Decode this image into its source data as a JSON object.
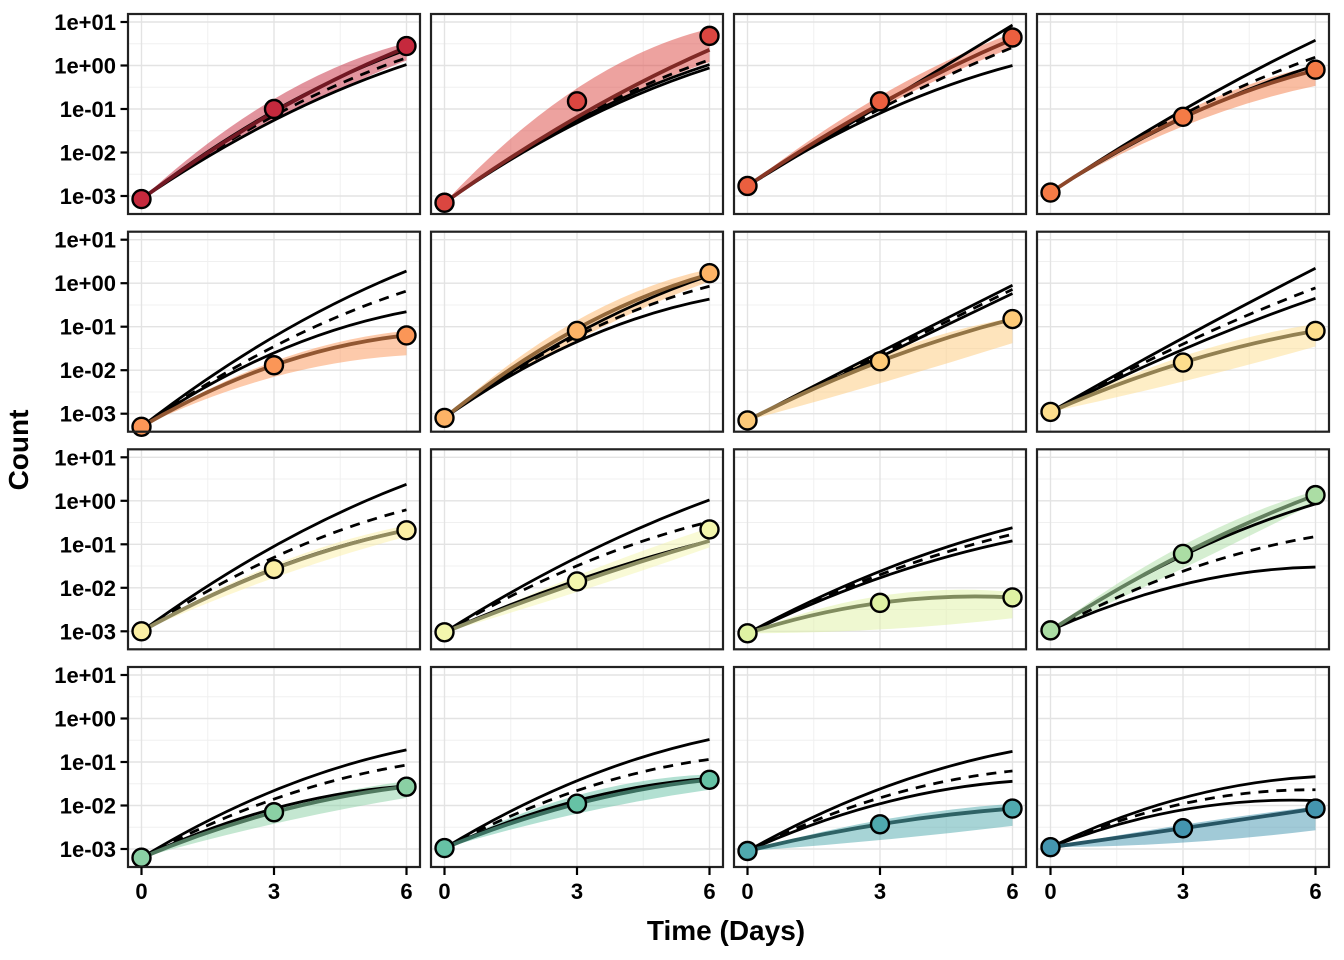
{
  "chart_data": {
    "type": "line",
    "title": "",
    "xlabel": "Time (Days)",
    "ylabel": "Count",
    "x": [
      0,
      3,
      6
    ],
    "x_ticks": [
      "0",
      "3",
      "6"
    ],
    "y_ticks": [
      "1e+01",
      "1e+00",
      "1e-01",
      "1e-02",
      "1e-03"
    ],
    "y_tick_values": [
      10,
      1,
      0.1,
      0.01,
      0.001
    ],
    "x_range": [
      0,
      6
    ],
    "y_log_range": [
      -3.45,
      1.18
    ],
    "grid": {
      "rows": 4,
      "cols": 4,
      "major_on": true,
      "minor_on": true
    },
    "legend": "none",
    "styles": {
      "ref_line_color": "#000000",
      "panel_border_color": "#222222",
      "grid_major_color": "#e3e3e3",
      "grid_minor_color": "#f0f0f0",
      "point_outline_color": "#000000",
      "ribbon_opacity": 0.5
    },
    "facets": [
      {
        "row": 1,
        "col": 1,
        "fill": "#C5293D",
        "stroke": "#721823",
        "points": [
          0.00085,
          0.1,
          2.8
        ],
        "line": [
          0.00085,
          0.085,
          2.6
        ],
        "ribbon_upper": [
          0.00085,
          0.17,
          3.3
        ],
        "ribbon_lower": [
          0.00085,
          0.052,
          1.3
        ],
        "ref_upper": [
          0.00085,
          0.09,
          2.3
        ],
        "ref_dashed": [
          0.00085,
          0.07,
          1.5
        ],
        "ref_lower": [
          0.00085,
          0.055,
          1.05
        ]
      },
      {
        "row": 1,
        "col": 2,
        "fill": "#DB4640",
        "stroke": "#7F2925",
        "points": [
          0.0007,
          0.15,
          4.8
        ],
        "line": [
          0.0007,
          0.065,
          2.3
        ],
        "ribbon_upper": [
          0.0007,
          0.3,
          7.0
        ],
        "ribbon_lower": [
          0.0007,
          0.055,
          1.2
        ],
        "ref_upper": [
          0.0007,
          0.055,
          1.05
        ],
        "ref_dashed": [
          0.0007,
          0.06,
          1.35
        ],
        "ref_lower": [
          0.0007,
          0.048,
          0.88
        ]
      },
      {
        "row": 1,
        "col": 3,
        "fill": "#EB5F3F",
        "stroke": "#883725",
        "points": [
          0.0017,
          0.15,
          4.4
        ],
        "line": [
          0.0017,
          0.13,
          4.0
        ],
        "ribbon_upper": [
          0.0017,
          0.2,
          5.5
        ],
        "ribbon_lower": [
          0.0017,
          0.105,
          2.6
        ],
        "ref_upper": [
          0.0017,
          0.12,
          8.5
        ],
        "ref_dashed": [
          0.0017,
          0.1,
          2.6
        ],
        "ref_lower": [
          0.0017,
          0.08,
          1.0
        ]
      },
      {
        "row": 1,
        "col": 4,
        "fill": "#F47B46",
        "stroke": "#8D4729",
        "points": [
          0.0012,
          0.066,
          0.8
        ],
        "line": [
          0.0012,
          0.064,
          0.78
        ],
        "ribbon_upper": [
          0.0012,
          0.085,
          1.0
        ],
        "ribbon_lower": [
          0.0012,
          0.04,
          0.34
        ],
        "ref_upper": [
          0.0012,
          0.095,
          3.8
        ],
        "ref_dashed": [
          0.0012,
          0.075,
          1.55
        ],
        "ref_lower": [
          0.0012,
          0.062,
          1.0
        ]
      },
      {
        "row": 2,
        "col": 1,
        "fill": "#FB9657",
        "stroke": "#925732",
        "points": [
          0.0005,
          0.013,
          0.063
        ],
        "line": [
          0.0005,
          0.013,
          0.063
        ],
        "ribbon_upper": [
          0.0005,
          0.016,
          0.08
        ],
        "ribbon_lower": [
          0.0005,
          0.007,
          0.022
        ],
        "ref_upper": [
          0.0005,
          0.059,
          1.9
        ],
        "ref_dashed": [
          0.0005,
          0.035,
          0.66
        ],
        "ref_lower": [
          0.0005,
          0.025,
          0.22
        ]
      },
      {
        "row": 2,
        "col": 2,
        "fill": "#FDB366",
        "stroke": "#93683B",
        "points": [
          0.0008,
          0.08,
          1.7
        ],
        "line": [
          0.0008,
          0.09,
          1.6
        ],
        "ribbon_upper": [
          0.0008,
          0.14,
          2.1
        ],
        "ribbon_lower": [
          0.0008,
          0.05,
          1.1
        ],
        "ref_upper": [
          0.0008,
          0.07,
          1.5
        ],
        "ref_dashed": [
          0.0008,
          0.06,
          0.85
        ],
        "ref_lower": [
          0.0008,
          0.045,
          0.43
        ]
      },
      {
        "row": 2,
        "col": 3,
        "fill": "#FDCA79",
        "stroke": "#937546",
        "points": [
          0.0007,
          0.016,
          0.15
        ],
        "line": [
          0.0007,
          0.016,
          0.15
        ],
        "ribbon_upper": [
          0.0007,
          0.022,
          0.16
        ],
        "ribbon_lower": [
          0.0007,
          0.005,
          0.042
        ],
        "ref_upper": [
          0.0007,
          0.026,
          0.9
        ],
        "ref_dashed": [
          0.0007,
          0.023,
          0.72
        ],
        "ref_lower": [
          0.0007,
          0.02,
          0.58
        ]
      },
      {
        "row": 2,
        "col": 4,
        "fill": "#FDDE8D",
        "stroke": "#938152",
        "points": [
          0.0011,
          0.015,
          0.08
        ],
        "line": [
          0.0011,
          0.015,
          0.08
        ],
        "ribbon_upper": [
          0.0011,
          0.021,
          0.115
        ],
        "ribbon_lower": [
          0.0011,
          0.0055,
          0.035
        ],
        "ref_upper": [
          0.0011,
          0.055,
          2.2
        ],
        "ref_dashed": [
          0.0011,
          0.04,
          0.78
        ],
        "ref_lower": [
          0.0011,
          0.03,
          0.45
        ]
      },
      {
        "row": 3,
        "col": 1,
        "fill": "#FBEFA5",
        "stroke": "#928B60",
        "points": [
          0.001,
          0.027,
          0.21
        ],
        "line": [
          0.001,
          0.027,
          0.21
        ],
        "ribbon_upper": [
          0.001,
          0.034,
          0.27
        ],
        "ribbon_lower": [
          0.001,
          0.017,
          0.15
        ],
        "ref_upper": [
          0.001,
          0.09,
          2.4
        ],
        "ref_dashed": [
          0.001,
          0.05,
          0.62
        ],
        "ref_lower": [
          0.001,
          0.028,
          0.21
        ]
      },
      {
        "row": 3,
        "col": 2,
        "fill": "#F3F6AD",
        "stroke": "#8D8F64",
        "points": [
          0.00095,
          0.014,
          0.22
        ],
        "line": [
          0.00095,
          0.013,
          0.12
        ],
        "ribbon_upper": [
          0.00095,
          0.019,
          0.24
        ],
        "ribbon_lower": [
          0.00095,
          0.008,
          0.085
        ],
        "ref_upper": [
          0.00095,
          0.05,
          1.05
        ],
        "ref_dashed": [
          0.00095,
          0.032,
          0.33
        ],
        "ref_lower": [
          0.00095,
          0.015,
          0.12
        ]
      },
      {
        "row": 3,
        "col": 3,
        "fill": "#DFF2A3",
        "stroke": "#818C5F",
        "points": [
          0.0009,
          0.0045,
          0.006
        ],
        "line": [
          0.0009,
          0.0045,
          0.006
        ],
        "ribbon_upper": [
          0.0009,
          0.0065,
          0.008
        ],
        "ribbon_lower": [
          0.0009,
          0.0011,
          0.002
        ],
        "ref_upper": [
          0.0009,
          0.024,
          0.24
        ],
        "ref_dashed": [
          0.0009,
          0.02,
          0.17
        ],
        "ref_lower": [
          0.0009,
          0.017,
          0.12
        ]
      },
      {
        "row": 3,
        "col": 4,
        "fill": "#ABDDA4",
        "stroke": "#63805F",
        "points": [
          0.00105,
          0.06,
          1.35
        ],
        "line": [
          0.00105,
          0.06,
          1.35
        ],
        "ribbon_upper": [
          0.00105,
          0.095,
          1.7
        ],
        "ribbon_lower": [
          0.00105,
          0.028,
          0.9
        ],
        "ref_upper": [
          0.00105,
          0.055,
          0.85
        ],
        "ref_dashed": [
          0.00105,
          0.024,
          0.15
        ],
        "ref_lower": [
          0.00105,
          0.012,
          0.03
        ]
      },
      {
        "row": 4,
        "col": 1,
        "fill": "#8AD0A4",
        "stroke": "#50795F",
        "points": [
          0.00063,
          0.007,
          0.027
        ],
        "line": [
          0.00063,
          0.007,
          0.027
        ],
        "ribbon_upper": [
          0.00063,
          0.0085,
          0.036
        ],
        "ribbon_lower": [
          0.00063,
          0.0038,
          0.015
        ],
        "ref_upper": [
          0.00063,
          0.022,
          0.19
        ],
        "ref_dashed": [
          0.00063,
          0.014,
          0.085
        ],
        "ref_lower": [
          0.00063,
          0.0085,
          0.028
        ]
      },
      {
        "row": 4,
        "col": 2,
        "fill": "#66C2A5",
        "stroke": "#3B7060",
        "points": [
          0.00105,
          0.011,
          0.039
        ],
        "line": [
          0.00105,
          0.011,
          0.039
        ],
        "ribbon_upper": [
          0.00105,
          0.017,
          0.052
        ],
        "ribbon_lower": [
          0.00105,
          0.0065,
          0.023
        ],
        "ref_upper": [
          0.00105,
          0.037,
          0.33
        ],
        "ref_dashed": [
          0.00105,
          0.022,
          0.115
        ],
        "ref_lower": [
          0.00105,
          0.013,
          0.042
        ]
      },
      {
        "row": 4,
        "col": 3,
        "fill": "#4FA9AE",
        "stroke": "#2E6265",
        "points": [
          0.0009,
          0.0037,
          0.0085
        ],
        "line": [
          0.0009,
          0.0037,
          0.0085
        ],
        "ribbon_upper": [
          0.0009,
          0.0046,
          0.011
        ],
        "ribbon_lower": [
          0.0009,
          0.0016,
          0.0034
        ],
        "ref_upper": [
          0.0009,
          0.024,
          0.175
        ],
        "ref_dashed": [
          0.0009,
          0.015,
          0.062
        ],
        "ref_lower": [
          0.0009,
          0.011,
          0.036
        ]
      },
      {
        "row": 4,
        "col": 4,
        "fill": "#4495AF",
        "stroke": "#275665",
        "points": [
          0.0011,
          0.003,
          0.0085
        ],
        "line": [
          0.0011,
          0.003,
          0.0085
        ],
        "ribbon_upper": [
          0.0011,
          0.0036,
          0.0095
        ],
        "ribbon_lower": [
          0.0011,
          0.0014,
          0.0027
        ],
        "ref_upper": [
          0.0011,
          0.015,
          0.046
        ],
        "ref_dashed": [
          0.0011,
          0.011,
          0.023
        ],
        "ref_lower": [
          0.0011,
          0.008,
          0.013
        ]
      }
    ]
  }
}
